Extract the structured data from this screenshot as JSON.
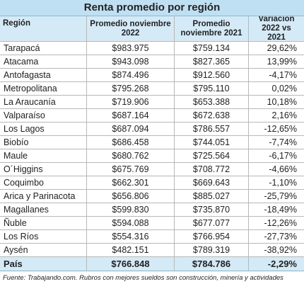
{
  "title": "Renta promedio por región",
  "table": {
    "header": [
      "Región",
      "Promedio noviembre 2022",
      "Promedio noviembre 2021",
      "Variación 2022 vs 2021"
    ],
    "rows": [
      [
        "Tarapacá",
        "$983.975",
        "$759.134",
        "29,62%"
      ],
      [
        "Atacama",
        "$943.098",
        "$827.365",
        "13,99%"
      ],
      [
        "Antofagasta",
        "$874.496",
        "$912.560",
        "-4,17%"
      ],
      [
        "Metropolitana",
        "$795.268",
        "$795.110",
        "0,02%"
      ],
      [
        "La Araucanía",
        "$719.906",
        "$653.388",
        "10,18%"
      ],
      [
        "Valparaíso",
        "$687.164",
        "$672.638",
        "2,16%"
      ],
      [
        "Los Lagos",
        "$687.094",
        "$786.557",
        "-12,65%"
      ],
      [
        "Biobío",
        "$686.458",
        "$744.051",
        "-7,74%"
      ],
      [
        "Maule",
        "$680.762",
        "$725.564",
        "-6,17%"
      ],
      [
        "O´Higgins",
        "$675.769",
        "$708.772",
        "-4,66%"
      ],
      [
        "Coquimbo",
        "$662.301",
        "$669.643",
        "-1,10%"
      ],
      [
        "Arica y Parinacota",
        "$656.806",
        "$885.027",
        "-25,79%"
      ],
      [
        "Magallanes",
        "$599.830",
        "$735.870",
        "-18,49%"
      ],
      [
        "Ñuble",
        "$594.088",
        "$677.077",
        "-12,26%"
      ],
      [
        "Los Ríos",
        "$554.316",
        "$766.954",
        "-27,73%"
      ],
      [
        "Aysén",
        "$482.151",
        "$789.319",
        "-38,92%"
      ]
    ],
    "total": [
      "País",
      "$766.848",
      "$784.786",
      "-2,29%"
    ]
  },
  "footnote": "Fuente: Trabajando.com. Rubros con mejores sueldos son construcción, minería y actividades"
}
